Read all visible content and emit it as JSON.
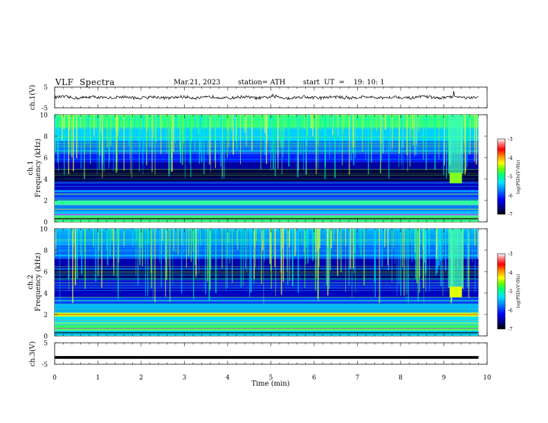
{
  "header": {
    "title": "VLF  Spectra",
    "date": "Mar.21, 2023",
    "station": "station= ATH",
    "start": "start  UT  =    19: 10: 1"
  },
  "chart_data": [
    {
      "type": "line",
      "name": "ch1-waveform",
      "ylabel": "ch.1(V)",
      "ylim": [
        -5,
        5
      ],
      "yticks": [
        "5",
        "-5"
      ],
      "xlim": [
        0,
        10
      ],
      "trace_end_min": 9.8,
      "color": "#000000"
    },
    {
      "type": "heatmap",
      "name": "ch1-spectrogram",
      "ylabel": [
        "ch.1",
        "Frequency  (kHz)"
      ],
      "ylim": [
        0,
        10
      ],
      "yticks": [
        "0",
        "2",
        "4",
        "6",
        "8",
        "10"
      ],
      "xlim": [
        0,
        10
      ],
      "data_end_min": 9.8,
      "colorbar": {
        "label": "log(PSD)(V²/Hz)",
        "range": [
          -7,
          -3
        ],
        "ticks": [
          "-3",
          "-4",
          "-5",
          "-6",
          "-7"
        ]
      }
    },
    {
      "type": "heatmap",
      "name": "ch2-spectrogram",
      "ylabel": [
        "ch.2",
        "Frequency  (kHz)"
      ],
      "ylim": [
        0,
        10
      ],
      "yticks": [
        "0",
        "2",
        "4",
        "6",
        "8",
        "10"
      ],
      "xlim": [
        0,
        10
      ],
      "data_end_min": 9.8,
      "colorbar": {
        "label": "log(PSD)(V²/Hz)",
        "range": [
          -7,
          -3
        ],
        "ticks": [
          "-3",
          "-4",
          "-5",
          "-6",
          "-7"
        ]
      }
    },
    {
      "type": "line",
      "name": "ch3-waveform",
      "ylabel": "ch.3(V)",
      "ylim": [
        -5,
        5
      ],
      "yticks": [
        "5",
        "-5"
      ],
      "xlim": [
        0,
        10
      ],
      "value": -1.8,
      "trace_end_min": 9.8,
      "color": "#000000"
    }
  ],
  "xaxis": {
    "label": "Time  (min)",
    "ticks": [
      "0",
      "1",
      "2",
      "3",
      "4",
      "5",
      "6",
      "7",
      "8",
      "9",
      "10"
    ]
  },
  "colors": {
    "colormap": [
      "#000000",
      "#00007a",
      "#0000ff",
      "#0080ff",
      "#00e0ff",
      "#00ff80",
      "#60ff00",
      "#ffff00",
      "#ff8000",
      "#ff0000",
      "#ff8080",
      "#ffffff"
    ],
    "background": "#ffffff"
  }
}
